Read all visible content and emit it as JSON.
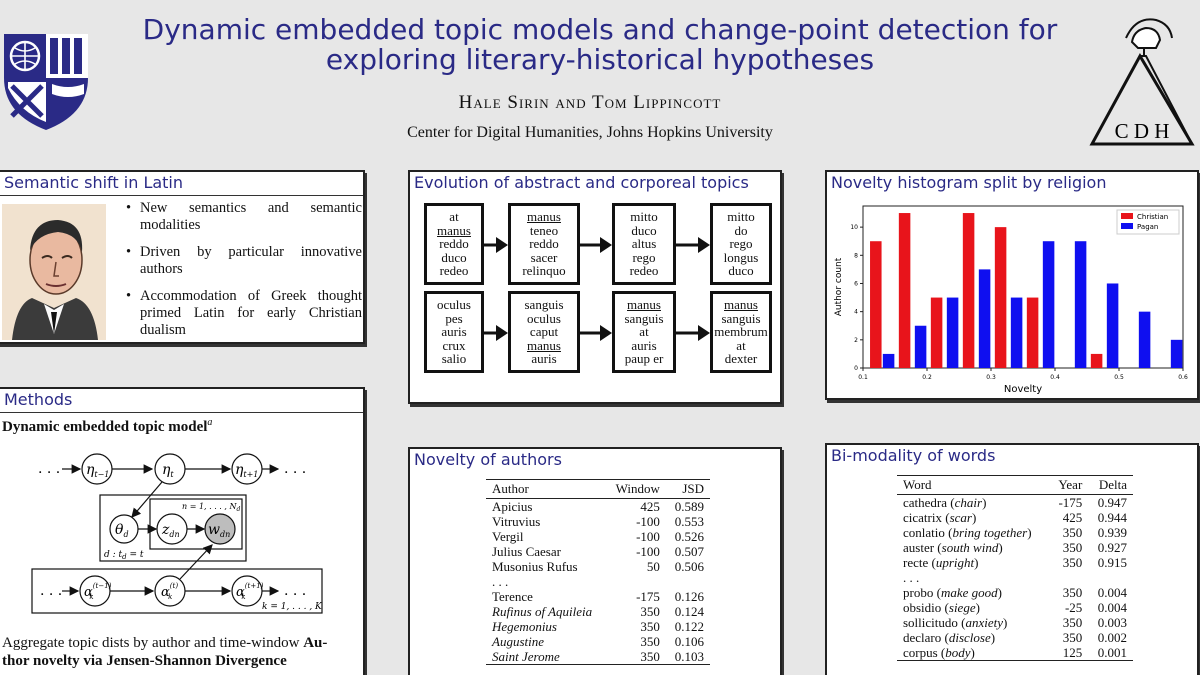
{
  "header": {
    "title_line1": "Dynamic embedded topic models and change-point detection for",
    "title_line2": "exploring literary-historical hypotheses",
    "authors": "Hale Sirin and Tom Lippincott",
    "affiliation": "Center for Digital Humanities, Johns Hopkins University",
    "logo_text": "C D H"
  },
  "semantic_shift": {
    "title": "Semantic shift in Latin",
    "bullets": [
      "New semantics and semantic modalities",
      "Driven by particular innovative authors",
      "Accommodation of Greek thought primed Latin for early Christian dualism"
    ]
  },
  "methods": {
    "title": "Methods",
    "subtitle": "Dynamic embedded topic model",
    "footnote_mark": "a",
    "diagram": {
      "eta_prev": "η",
      "eta_prev_sub": "t−1",
      "eta": "η",
      "eta_sub": "t",
      "eta_next": "η",
      "eta_next_sub": "t+1",
      "theta": "θ",
      "theta_sub": "d",
      "z": "z",
      "z_sub": "dn",
      "w": "w",
      "w_sub": "dn",
      "plate_inner": "n = 1, . . . , N",
      "plate_inner_sub": "d",
      "plate_doc": "d : t",
      "plate_doc_sub": "d",
      "plate_doc_tail": " = t",
      "alpha": "α",
      "alpha_sub": "k",
      "alpha_prev_sup": "(t−1)",
      "alpha_sup": "(t)",
      "alpha_next_sup": "(t+1)",
      "plate_topic": "k = 1, . . . , K",
      "dots": ". . ."
    },
    "text_line1": "Aggregate topic dists by author and time-window",
    "text_line1_bold": "Au-",
    "text_line2": "thor novelty via Jensen-Shannon Divergence"
  },
  "evolution": {
    "title": "Evolution of abstract and corporeal topics",
    "rows": [
      [
        [
          {
            "w": "at",
            "u": false
          },
          {
            "w": "manus",
            "u": true
          },
          {
            "w": "reddo",
            "u": false
          },
          {
            "w": "duco",
            "u": false
          },
          {
            "w": "redeo",
            "u": false
          }
        ],
        [
          {
            "w": "manus",
            "u": true
          },
          {
            "w": "teneo",
            "u": false
          },
          {
            "w": "reddo",
            "u": false
          },
          {
            "w": "sacer",
            "u": false
          },
          {
            "w": "relinquo",
            "u": false
          }
        ],
        [
          {
            "w": "mitto",
            "u": false
          },
          {
            "w": "duco",
            "u": false
          },
          {
            "w": "altus",
            "u": false
          },
          {
            "w": "rego",
            "u": false
          },
          {
            "w": "redeo",
            "u": false
          }
        ],
        [
          {
            "w": "mitto",
            "u": false
          },
          {
            "w": "do",
            "u": false
          },
          {
            "w": "rego",
            "u": false
          },
          {
            "w": "longus",
            "u": false
          },
          {
            "w": "duco",
            "u": false
          }
        ]
      ],
      [
        [
          {
            "w": "oculus",
            "u": false
          },
          {
            "w": "pes",
            "u": false
          },
          {
            "w": "auris",
            "u": false
          },
          {
            "w": "crux",
            "u": false
          },
          {
            "w": "salio",
            "u": false
          }
        ],
        [
          {
            "w": "sanguis",
            "u": false
          },
          {
            "w": "oculus",
            "u": false
          },
          {
            "w": "caput",
            "u": false
          },
          {
            "w": "manus",
            "u": true
          },
          {
            "w": "auris",
            "u": false
          }
        ],
        [
          {
            "w": "manus",
            "u": true
          },
          {
            "w": "sanguis",
            "u": false
          },
          {
            "w": "at",
            "u": false
          },
          {
            "w": "auris",
            "u": false
          },
          {
            "w": "paup er",
            "u": false
          }
        ],
        [
          {
            "w": "manus",
            "u": true
          },
          {
            "w": "sanguis",
            "u": false
          },
          {
            "w": "membrum",
            "u": false
          },
          {
            "w": "at",
            "u": false
          },
          {
            "w": "dexter",
            "u": false
          }
        ]
      ]
    ]
  },
  "novelty_histogram": {
    "title": "Novelty histogram split by religion"
  },
  "chart_data": {
    "type": "bar",
    "title": "",
    "xlabel": "Novelty",
    "ylabel": "Author count",
    "xlim": [
      0.1,
      0.6
    ],
    "ylim": [
      0,
      11.5
    ],
    "x_ticks": [
      "0.1",
      "0.2",
      "0.3",
      "0.4",
      "0.5",
      "0.6"
    ],
    "y_ticks": [
      "0",
      "2",
      "4",
      "6",
      "8",
      "10"
    ],
    "legend_position": "top-right",
    "colors": {
      "Christian": "#e8141b",
      "Pagan": "#0f0ff0"
    },
    "series": [
      {
        "name": "Christian",
        "x": [
          0.12,
          0.165,
          0.215,
          0.265,
          0.315,
          0.365,
          0.465
        ],
        "values": [
          9,
          11,
          5,
          11,
          10,
          5,
          1
        ]
      },
      {
        "name": "Pagan",
        "x": [
          0.14,
          0.19,
          0.24,
          0.29,
          0.34,
          0.39,
          0.44,
          0.49,
          0.54,
          0.59
        ],
        "values": [
          1,
          3,
          5,
          7,
          5,
          9,
          9,
          6,
          4,
          2
        ]
      }
    ]
  },
  "novelty_authors": {
    "title": "Novelty of authors",
    "headers": [
      "Author",
      "Window",
      "JSD"
    ],
    "rows_top": [
      {
        "author": "Apicius",
        "window": "425",
        "jsd": "0.589",
        "italic": false
      },
      {
        "author": "Vitruvius",
        "window": "-100",
        "jsd": "0.553",
        "italic": false
      },
      {
        "author": "Vergil",
        "window": "-100",
        "jsd": "0.526",
        "italic": false
      },
      {
        "author": "Julius Caesar",
        "window": "-100",
        "jsd": "0.507",
        "italic": false
      },
      {
        "author": "Musonius Rufus",
        "window": "50",
        "jsd": "0.506",
        "italic": false
      }
    ],
    "ellipsis": ". . .",
    "rows_bottom": [
      {
        "author": "Terence",
        "window": "-175",
        "jsd": "0.126",
        "italic": false
      },
      {
        "author": "Rufinus of Aquileia",
        "window": "350",
        "jsd": "0.124",
        "italic": true
      },
      {
        "author": "Hegemonius",
        "window": "350",
        "jsd": "0.122",
        "italic": true
      },
      {
        "author": "Augustine",
        "window": "350",
        "jsd": "0.106",
        "italic": true
      },
      {
        "author": "Saint Jerome",
        "window": "350",
        "jsd": "0.103",
        "italic": true
      }
    ]
  },
  "bimodality": {
    "title": "Bi-modality of words",
    "headers": [
      "Word",
      "Year",
      "Delta"
    ],
    "rows_top": [
      {
        "word": "cathedra",
        "gloss": "chair",
        "year": "-175",
        "delta": "0.947"
      },
      {
        "word": "cicatrix",
        "gloss": "scar",
        "year": "425",
        "delta": "0.944"
      },
      {
        "word": "conlatio",
        "gloss": "bring together",
        "year": "350",
        "delta": "0.939"
      },
      {
        "word": "auster",
        "gloss": "south wind",
        "year": "350",
        "delta": "0.927"
      },
      {
        "word": "recte",
        "gloss": "upright",
        "year": "350",
        "delta": "0.915"
      }
    ],
    "ellipsis": ". . .",
    "rows_bottom": [
      {
        "word": "probo",
        "gloss": "make good",
        "year": "350",
        "delta": "0.004"
      },
      {
        "word": "obsidio",
        "gloss": "siege",
        "year": "-25",
        "delta": "0.004"
      },
      {
        "word": "sollicitudo",
        "gloss": "anxiety",
        "year": "350",
        "delta": "0.003"
      },
      {
        "word": "declaro",
        "gloss": "disclose",
        "year": "350",
        "delta": "0.002"
      },
      {
        "word": "corpus",
        "gloss": "body",
        "year": "125",
        "delta": "0.001"
      }
    ]
  }
}
